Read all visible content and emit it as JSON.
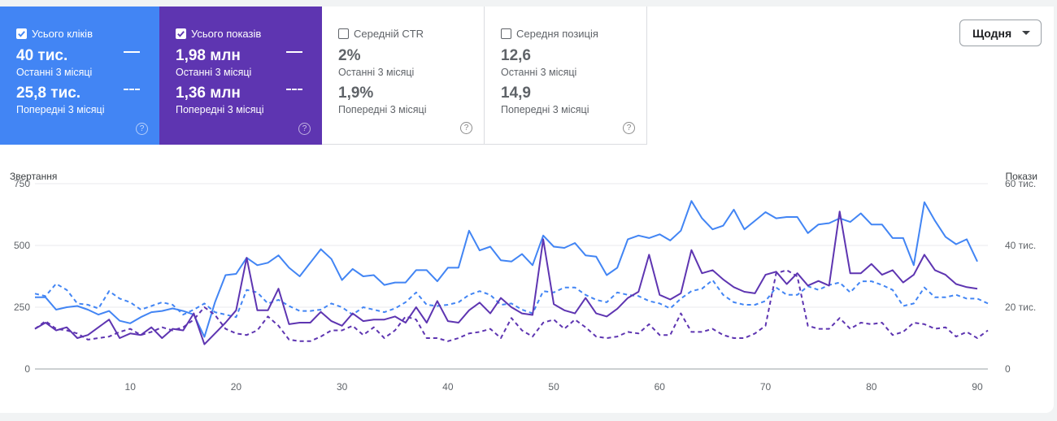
{
  "metrics": {
    "clicks": {
      "label": "Усього кліків",
      "current_value": "40 тис.",
      "current_period": "Останні 3 місяці",
      "previous_value": "25,8 тис.",
      "previous_period": "Попередні 3 місяці",
      "checked": true
    },
    "impressions": {
      "label": "Усього показів",
      "current_value": "1,98 млн",
      "current_period": "Останні 3 місяці",
      "previous_value": "1,36 млн",
      "previous_period": "Попередні 3 місяці",
      "checked": true
    },
    "ctr": {
      "label": "Середній CTR",
      "current_value": "2%",
      "current_period": "Останні 3 місяці",
      "previous_value": "1,9%",
      "previous_period": "Попередні 3 місяці",
      "checked": false
    },
    "position": {
      "label": "Середня позиція",
      "current_value": "12,6",
      "current_period": "Останні 3 місяці",
      "previous_value": "14,9",
      "previous_period": "Попередні 3 місяці",
      "checked": false
    }
  },
  "help_glyph": "?",
  "granularity": {
    "selected": "Щодня"
  },
  "colors": {
    "clicks": "#4285f4",
    "impressions": "#5e35b1",
    "grid": "#e8eaed"
  },
  "chart_data": {
    "type": "line",
    "left_axis_label": "Звертання",
    "right_axis_label": "Покази",
    "y_left": {
      "ticks": [
        0,
        250,
        500,
        750
      ],
      "range": [
        0,
        750
      ]
    },
    "y_right": {
      "ticks": [
        "0",
        "20 тис.",
        "40 тис.",
        "60 тис."
      ],
      "range": [
        0,
        60000
      ]
    },
    "x": {
      "ticks": [
        10,
        20,
        30,
        40,
        50,
        60,
        70,
        80,
        90
      ],
      "range": [
        1,
        91
      ]
    },
    "series": [
      {
        "name": "Усього кліків",
        "axis": "left",
        "dashed": false,
        "color": "#4285f4",
        "values": [
          290,
          290,
          240,
          250,
          255,
          240,
          220,
          235,
          195,
          185,
          210,
          230,
          235,
          245,
          235,
          220,
          130,
          270,
          380,
          385,
          450,
          420,
          430,
          460,
          410,
          375,
          430,
          485,
          445,
          360,
          405,
          375,
          380,
          340,
          350,
          350,
          400,
          400,
          355,
          410,
          410,
          560,
          480,
          495,
          440,
          435,
          465,
          420,
          540,
          495,
          490,
          510,
          460,
          455,
          380,
          410,
          525,
          540,
          530,
          545,
          520,
          560,
          680,
          610,
          565,
          580,
          645,
          565,
          600,
          635,
          610,
          615,
          615,
          550,
          585,
          590,
          610,
          595,
          630,
          585,
          585,
          530,
          530,
          420,
          675,
          600,
          535,
          505,
          525,
          435,
          null
        ]
      },
      {
        "name": "Усього кліків",
        "axis": "left",
        "dashed": true,
        "color": "#4285f4",
        "values": [
          305,
          295,
          345,
          320,
          265,
          260,
          245,
          315,
          285,
          270,
          240,
          255,
          270,
          260,
          220,
          240,
          265,
          230,
          220,
          210,
          320,
          310,
          265,
          280,
          255,
          235,
          235,
          240,
          265,
          250,
          220,
          250,
          240,
          230,
          245,
          270,
          310,
          260,
          255,
          260,
          270,
          300,
          315,
          300,
          260,
          265,
          240,
          225,
          315,
          310,
          330,
          330,
          300,
          280,
          270,
          310,
          300,
          295,
          275,
          265,
          245,
          285,
          315,
          325,
          360,
          300,
          270,
          260,
          260,
          275,
          330,
          300,
          300,
          335,
          320,
          340,
          350,
          310,
          355,
          355,
          340,
          320,
          255,
          265,
          330,
          290,
          290,
          300,
          285,
          285,
          265
        ]
      },
      {
        "name": "Усього показів",
        "axis": "right",
        "dashed": false,
        "color": "#5e35b1",
        "values": [
          13000,
          15000,
          12500,
          13500,
          10000,
          11000,
          13500,
          16000,
          10000,
          11500,
          11000,
          13500,
          10000,
          13000,
          12500,
          18000,
          8000,
          11500,
          15000,
          19000,
          36000,
          19000,
          19000,
          26000,
          14500,
          15000,
          15000,
          18500,
          15500,
          14000,
          18000,
          15500,
          16000,
          16000,
          17000,
          15000,
          20000,
          15000,
          22000,
          15500,
          15000,
          19000,
          21500,
          18000,
          23000,
          20000,
          18000,
          17500,
          42000,
          21000,
          19000,
          18000,
          23000,
          18000,
          17000,
          19500,
          23000,
          25000,
          37000,
          24000,
          22500,
          24500,
          38500,
          31000,
          32000,
          29000,
          26500,
          25000,
          24500,
          30500,
          31500,
          27500,
          31000,
          27000,
          28500,
          27000,
          51000,
          31000,
          31000,
          34000,
          30500,
          32000,
          28000,
          30500,
          37000,
          32000,
          30500,
          27500,
          26500,
          26000,
          null
        ]
      },
      {
        "name": "Усього показів",
        "axis": "right",
        "dashed": true,
        "color": "#5e35b1",
        "values": [
          13000,
          15500,
          13000,
          12500,
          11500,
          9500,
          10000,
          10500,
          12000,
          13000,
          11000,
          12000,
          13500,
          12500,
          13500,
          16000,
          20000,
          17500,
          13000,
          11500,
          11000,
          12500,
          17000,
          14000,
          9500,
          9000,
          9000,
          10500,
          12500,
          12500,
          14000,
          11000,
          13500,
          10000,
          12500,
          17000,
          16000,
          10000,
          10000,
          9000,
          10000,
          11500,
          12000,
          13000,
          10000,
          16500,
          12500,
          10500,
          15000,
          16000,
          13000,
          16000,
          13500,
          10500,
          10000,
          10500,
          12000,
          11500,
          14500,
          11000,
          11000,
          18000,
          12000,
          12000,
          13000,
          11000,
          10000,
          10000,
          11500,
          14000,
          31000,
          32000,
          30000,
          14000,
          13000,
          13000,
          16500,
          13000,
          15000,
          14500,
          15000,
          11000,
          12000,
          15000,
          14500,
          13000,
          13500,
          10500,
          12000,
          10000,
          12500
        ]
      }
    ]
  }
}
